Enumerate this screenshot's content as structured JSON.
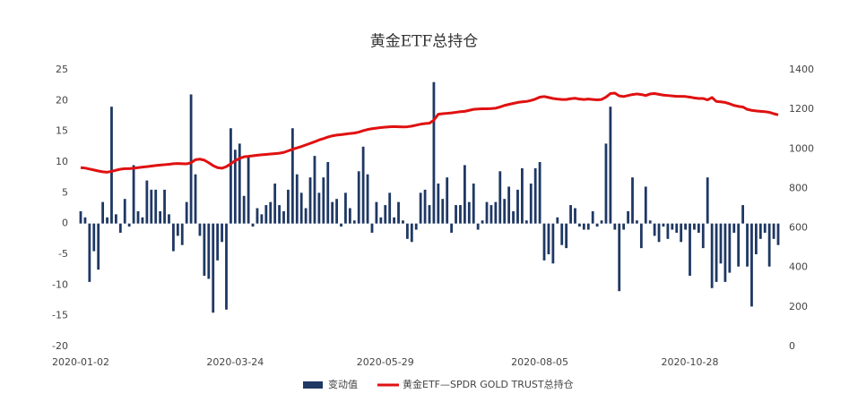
{
  "chart_data": {
    "type": "bar",
    "title": "黄金ETF总持仓",
    "categories": [
      "2020-01-02",
      null,
      null,
      null,
      null,
      null,
      null,
      null,
      null,
      null,
      null,
      null,
      null,
      null,
      null,
      null,
      null,
      null,
      null,
      null,
      null,
      null,
      null,
      null,
      null,
      null,
      null,
      null,
      null,
      null,
      null,
      null,
      null,
      null,
      null,
      "2020-03-24",
      null,
      null,
      null,
      null,
      null,
      null,
      null,
      null,
      null,
      null,
      null,
      null,
      null,
      null,
      null,
      null,
      null,
      null,
      null,
      null,
      null,
      null,
      null,
      null,
      null,
      null,
      null,
      null,
      null,
      null,
      null,
      null,
      null,
      "2020-05-29",
      null,
      null,
      null,
      null,
      null,
      null,
      null,
      null,
      null,
      null,
      null,
      null,
      null,
      null,
      null,
      null,
      null,
      null,
      null,
      null,
      null,
      null,
      null,
      null,
      null,
      null,
      null,
      null,
      null,
      null,
      null,
      null,
      null,
      null,
      "2020-08-05",
      null,
      null,
      null,
      null,
      null,
      null,
      null,
      null,
      null,
      null,
      null,
      null,
      null,
      null,
      null,
      null,
      null,
      null,
      null,
      null,
      null,
      null,
      null,
      null,
      null,
      null,
      null,
      null,
      null,
      null,
      null,
      null,
      null,
      "2020-10-28",
      null,
      null,
      null,
      null,
      null,
      null,
      null,
      null,
      null,
      null,
      null,
      null,
      null,
      null,
      null,
      null,
      null,
      null,
      null,
      null
    ],
    "series": [
      {
        "name": "变动值",
        "type": "bar",
        "color": "#1f3864",
        "values": [
          2,
          1,
          -9.5,
          -4.5,
          -7.5,
          3.5,
          1,
          19,
          1.5,
          -1.5,
          4,
          -0.5,
          9.5,
          2,
          1,
          7,
          5.5,
          5.5,
          2,
          5.5,
          1.5,
          -4.5,
          -2,
          -3.5,
          3.5,
          21,
          8,
          -2,
          -8.5,
          -9,
          -14.5,
          -6,
          -3,
          -14,
          15.5,
          12,
          13,
          4.5,
          11,
          -0.5,
          2.5,
          1.5,
          3,
          3.5,
          6.5,
          3,
          2,
          5.5,
          15.5,
          8,
          5,
          2.5,
          7.5,
          11,
          5,
          7.5,
          10,
          3.5,
          4,
          -0.5,
          5,
          2.5,
          0.5,
          8.5,
          12.5,
          8,
          -1.5,
          3.5,
          1,
          3,
          5,
          1,
          3.5,
          0.5,
          -2.5,
          -3,
          -1,
          5,
          5.5,
          3,
          23,
          6.5,
          4,
          7.5,
          -1.5,
          3,
          3,
          9.5,
          3.5,
          6.5,
          -1,
          0.5,
          3.5,
          3,
          3.5,
          8.5,
          4,
          6,
          2,
          5.5,
          9,
          0.5,
          6.5,
          9,
          10,
          -6,
          -5,
          -6.5,
          1,
          -3.5,
          -4,
          3,
          2.5,
          -0.5,
          -1,
          -1,
          2,
          -0.5,
          0.5,
          13,
          19,
          -1,
          -11,
          -1,
          2,
          7.5,
          0.5,
          -4,
          6,
          0.5,
          -2,
          -3,
          -0.5,
          -2.5,
          -1,
          -1.5,
          -3,
          -1,
          -8.5,
          -1,
          -1.5,
          -4,
          7.5,
          -10.5,
          -9.5,
          -6.5,
          -9.5,
          -8,
          -1.5,
          -7,
          3,
          -7,
          -13.5,
          -5,
          -2.5,
          -1.5,
          -7,
          -2.5,
          -3.5
        ]
      },
      {
        "name": "黄金ETF—SPDR GOLD TRUST总持仓",
        "type": "line",
        "axis": "y2",
        "color": "#e01010",
        "values": [
          905,
          903,
          898,
          893,
          888,
          884,
          882,
          886,
          892,
          897,
          900,
          900,
          902,
          905,
          908,
          910,
          913,
          916,
          918,
          920,
          922,
          925,
          926,
          925,
          924,
          930,
          945,
          948,
          943,
          930,
          915,
          905,
          902,
          910,
          925,
          940,
          952,
          960,
          962,
          965,
          968,
          970,
          972,
          974,
          976,
          978,
          982,
          990,
          998,
          1005,
          1012,
          1020,
          1028,
          1036,
          1045,
          1052,
          1060,
          1066,
          1070,
          1072,
          1075,
          1078,
          1080,
          1085,
          1092,
          1098,
          1102,
          1105,
          1108,
          1110,
          1112,
          1113,
          1112,
          1111,
          1112,
          1115,
          1120,
          1125,
          1128,
          1130,
          1145,
          1175,
          1178,
          1180,
          1182,
          1185,
          1188,
          1190,
          1195,
          1200,
          1202,
          1203,
          1203,
          1204,
          1206,
          1212,
          1220,
          1225,
          1230,
          1235,
          1238,
          1240,
          1245,
          1252,
          1262,
          1265,
          1260,
          1255,
          1252,
          1250,
          1250,
          1254,
          1256,
          1252,
          1250,
          1252,
          1250,
          1248,
          1250,
          1262,
          1280,
          1282,
          1268,
          1265,
          1270,
          1275,
          1278,
          1275,
          1270,
          1278,
          1280,
          1276,
          1272,
          1270,
          1268,
          1266,
          1266,
          1265,
          1262,
          1258,
          1255,
          1255,
          1248,
          1260,
          1240,
          1238,
          1235,
          1228,
          1220,
          1215,
          1212,
          1200,
          1195,
          1192,
          1190,
          1188,
          1185,
          1178,
          1172
        ]
      }
    ],
    "ylim": [
      -20,
      25
    ],
    "yticks": [
      -20,
      -15,
      -10,
      -5,
      0,
      5,
      10,
      15,
      20,
      25
    ],
    "y2lim": [
      0,
      1400
    ],
    "y2ticks": [
      0,
      200,
      400,
      600,
      800,
      1000,
      1200,
      1400
    ],
    "grid": false,
    "legend": "bottom"
  }
}
